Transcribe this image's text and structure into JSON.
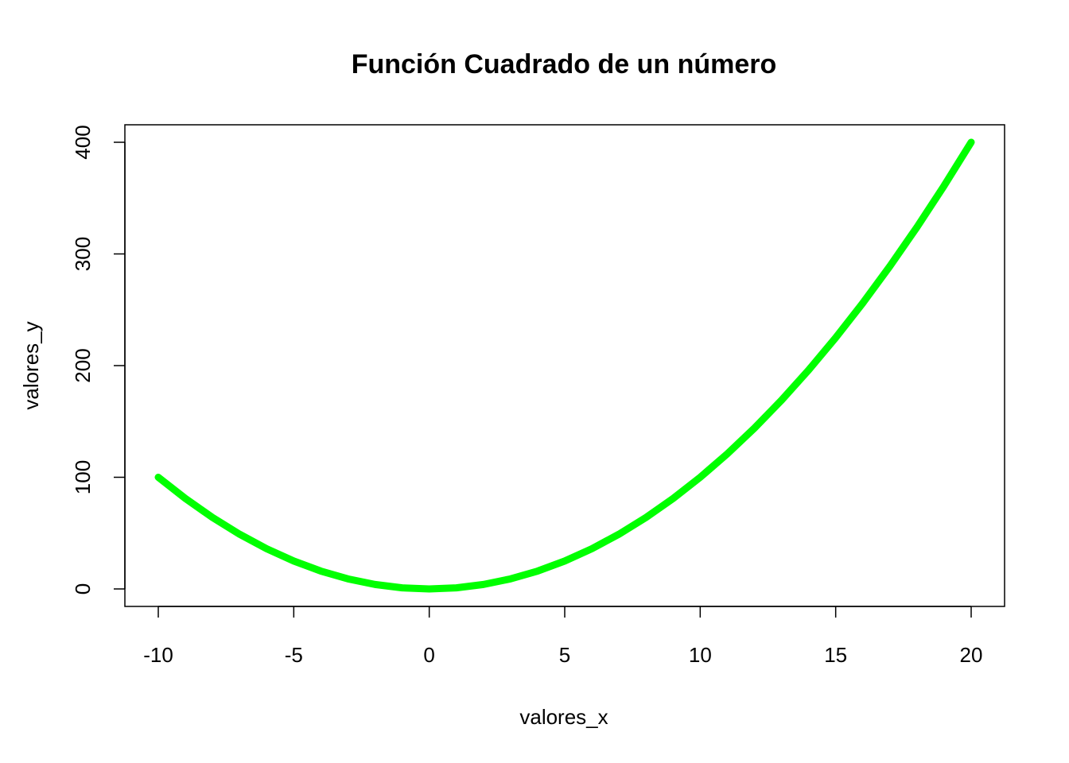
{
  "chart_data": {
    "type": "line",
    "title": "Función Cuadrado de un número",
    "xlabel": "valores_x",
    "ylabel": "valores_y",
    "xlim": [
      -10,
      20
    ],
    "ylim": [
      0,
      400
    ],
    "x_ticks": [
      -10,
      -5,
      0,
      5,
      10,
      15,
      20
    ],
    "y_ticks": [
      0,
      100,
      200,
      300,
      400
    ],
    "grid": false,
    "line_color": "#00ff00",
    "series": [
      {
        "x": [
          -10,
          -9,
          -8,
          -7,
          -6,
          -5,
          -4,
          -3,
          -2,
          -1,
          0,
          1,
          2,
          3,
          4,
          5,
          6,
          7,
          8,
          9,
          10,
          11,
          12,
          13,
          14,
          15,
          16,
          17,
          18,
          19,
          20
        ],
        "values": [
          100,
          81,
          64,
          49,
          36,
          25,
          16,
          9,
          4,
          1,
          0,
          1,
          4,
          9,
          16,
          25,
          36,
          49,
          64,
          81,
          100,
          121,
          144,
          169,
          196,
          225,
          256,
          289,
          324,
          361,
          400
        ]
      }
    ]
  }
}
